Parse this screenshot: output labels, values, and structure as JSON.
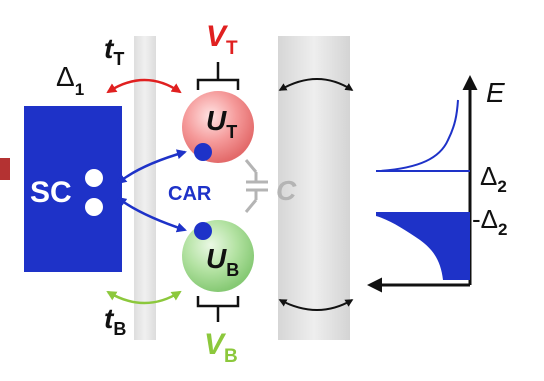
{
  "labels": {
    "t_top": "t",
    "t_top_sub": "T",
    "t_bottom": "t",
    "t_bottom_sub": "B",
    "v_top": "V",
    "v_top_sub": "T",
    "v_bottom": "V",
    "v_bottom_sub": "B",
    "delta1": "Δ",
    "delta1_sub": "1",
    "sc": "SC",
    "u_top": "U",
    "u_top_sub": "T",
    "u_bottom": "U",
    "u_bottom_sub": "B",
    "car": "CAR",
    "c": "C",
    "energy_axis": "E",
    "delta2_pos": "Δ",
    "delta2_pos_sub": "2",
    "delta2_neg": "-Δ",
    "delta2_neg_sub": "2"
  },
  "colors": {
    "sc_blue": "#1E32C8",
    "barrier_gray": "#E6E6E6",
    "dot_red": "#F07878",
    "dot_green": "#9BD78C",
    "red_text": "#E02020",
    "green_text": "#8CC83C",
    "capacitor_gray": "#B4B4B4",
    "accent_red": "#B43232"
  }
}
